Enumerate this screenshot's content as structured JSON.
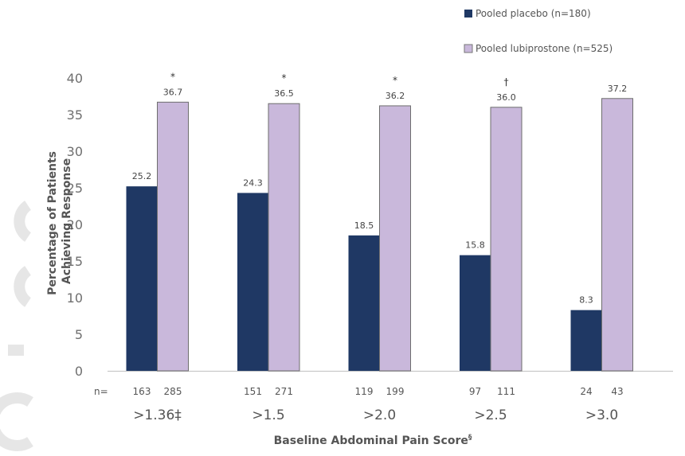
{
  "chart_data": {
    "type": "bar",
    "xlabel": "Baseline Abdominal Pain Score",
    "xlabel_sup": "§",
    "ylabel": "Percentage of Patients Achieving Response",
    "ylim": [
      0,
      40
    ],
    "yticks": [
      0,
      5,
      10,
      15,
      20,
      25,
      30,
      35,
      40
    ],
    "grid": false,
    "legend_position": "top-right",
    "categories": [
      ">1.36‡",
      ">1.5",
      ">2.0",
      ">2.5",
      ">3.0"
    ],
    "series": [
      {
        "name": "Pooled placebo (n=180)",
        "color": "#1f3864",
        "values": [
          25.2,
          24.3,
          18.5,
          15.8,
          8.3
        ],
        "labels": [
          "25.2",
          "24.3",
          "18.5",
          "15.8",
          "8.3"
        ],
        "n": [
          "163",
          "151",
          "119",
          "97",
          "24"
        ]
      },
      {
        "name": "Pooled lubiprostone (n=525)",
        "color": "#c9b8db",
        "values": [
          36.7,
          36.5,
          36.2,
          36.0,
          37.2
        ],
        "labels": [
          "36.7",
          "36.5",
          "36.2",
          "36.0",
          "37.2"
        ],
        "n": [
          "285",
          "271",
          "199",
          "111",
          "43"
        ]
      }
    ],
    "n_prefix": "n=",
    "significance": [
      "*",
      "*",
      "*",
      "†",
      ""
    ]
  }
}
